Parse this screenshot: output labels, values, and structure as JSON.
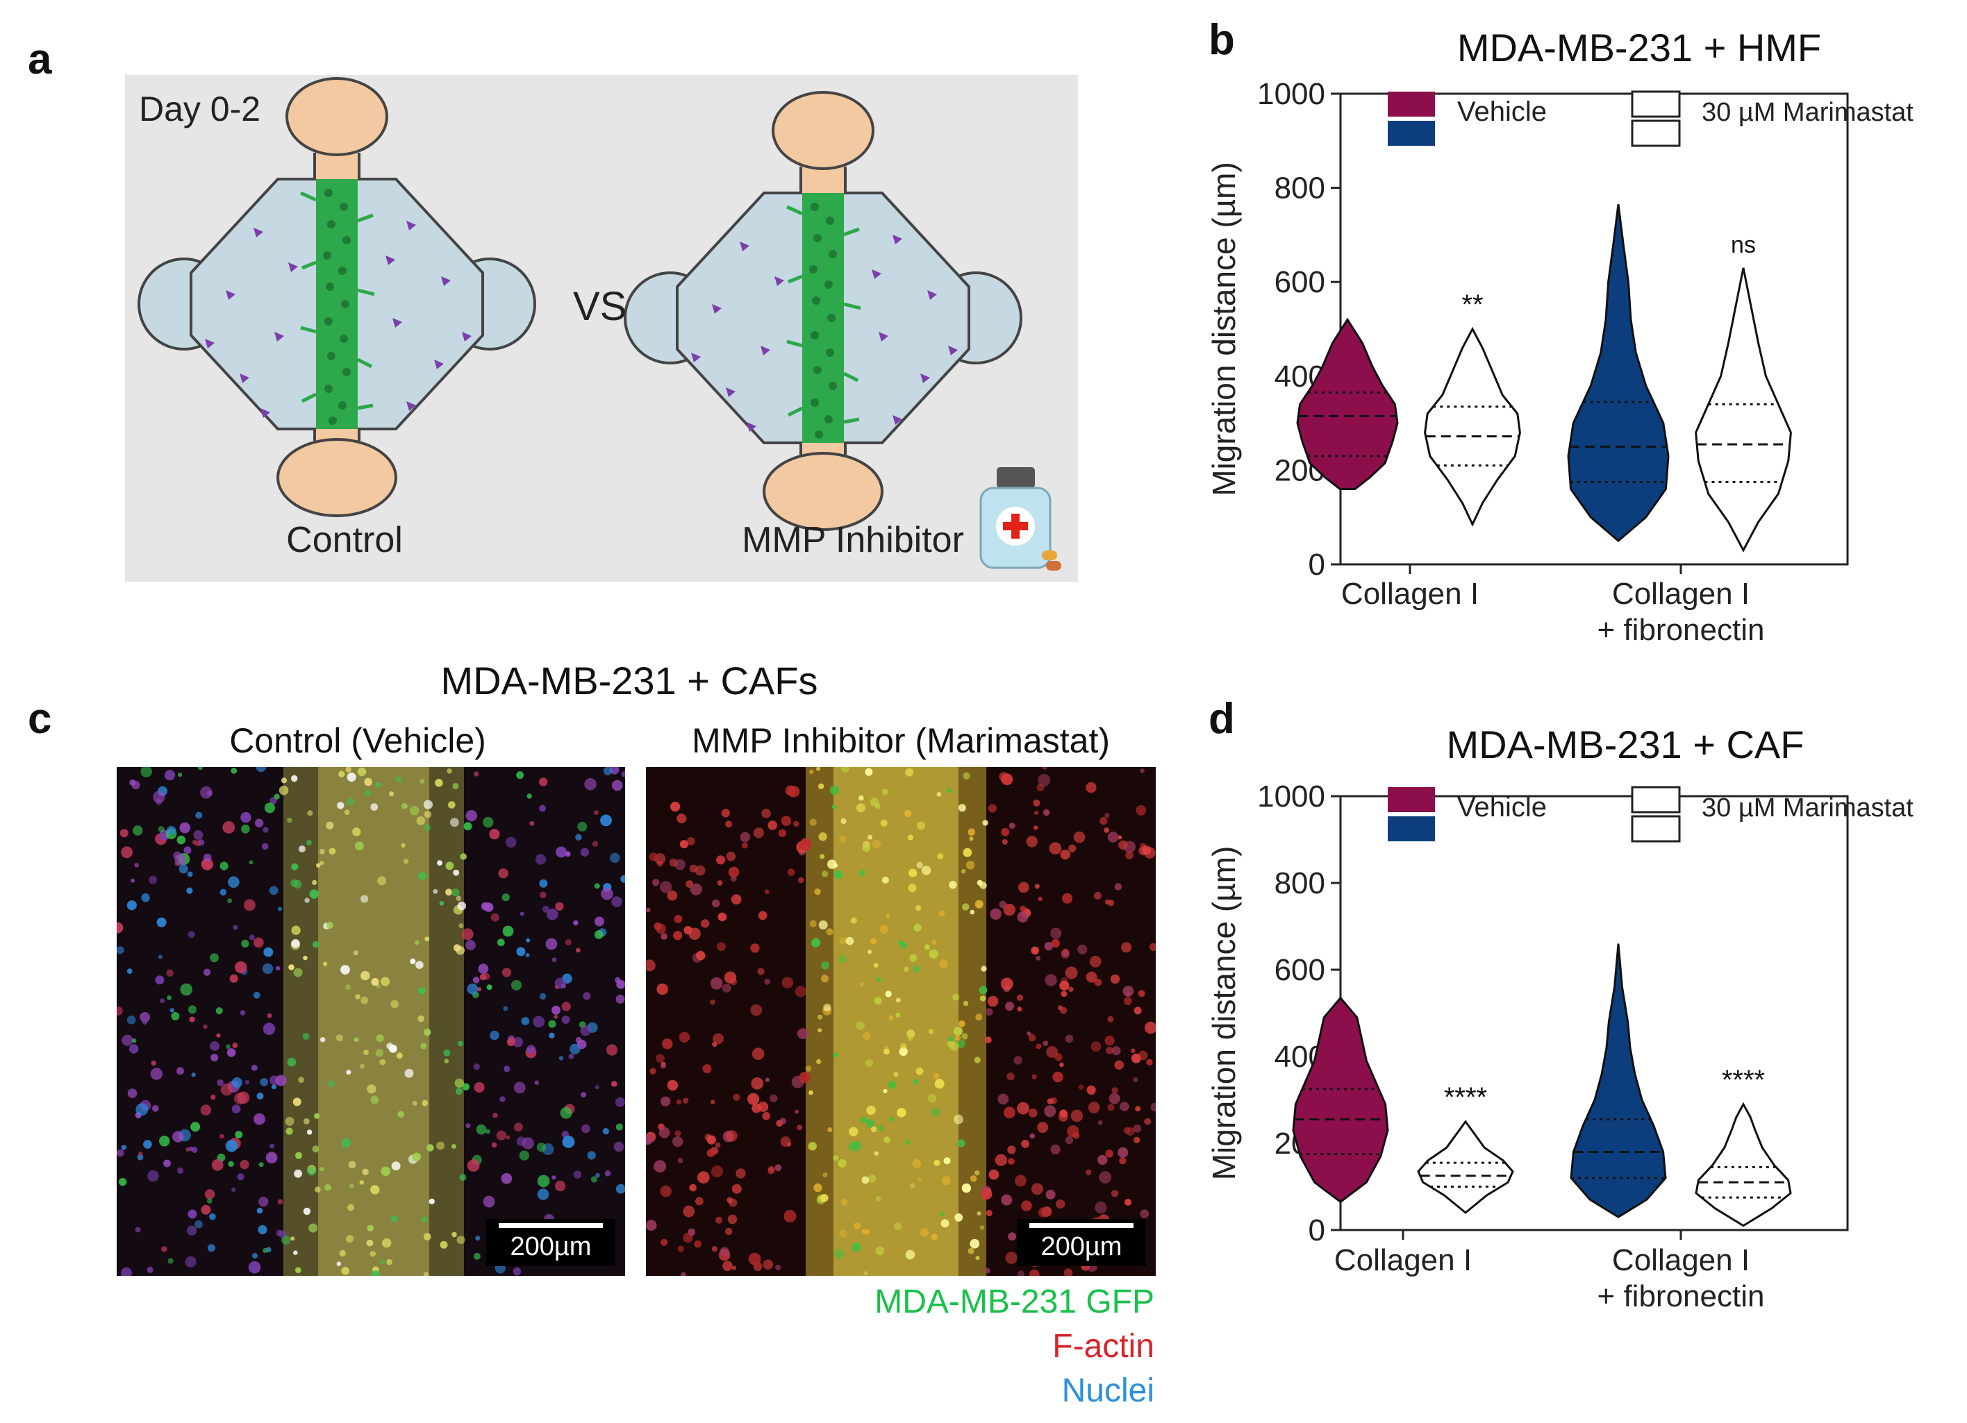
{
  "panels": {
    "a": {
      "letter": "a",
      "day_label": "Day 0-2",
      "vs_label": "VS",
      "control_label": "Control",
      "inhibitor_label": "MMP Inhibitor"
    },
    "b": {
      "letter": "b"
    },
    "c": {
      "letter": "c",
      "title": "MDA-MB-231 + CAFs",
      "left_title": "Control (Vehicle)",
      "right_title": "MMP Inhibitor (Marimastat)",
      "scale_label": "200µm",
      "legend": [
        {
          "label": "MDA-MB-231 GFP",
          "color": "#19c04a"
        },
        {
          "label": "F-actin",
          "color": "#d8232a"
        },
        {
          "label": "Nuclei",
          "color": "#2a8fdc"
        }
      ]
    },
    "d": {
      "letter": "d"
    }
  },
  "colors": {
    "vehicle_collagen": "#8c0f4b",
    "vehicle_fibronectin": "#0c3e7d",
    "diagram_bg": "#e6e6e6",
    "chip_blue": "#c6d9e3",
    "port_tan": "#f2c9a0",
    "gel_green": "#2da84a",
    "cell_purple": "#7b3fa8"
  },
  "chart_data": [
    {
      "id": "b",
      "type": "violin",
      "title": "MDA-MB-231 + HMF",
      "ylabel": "Migration distance (µm)",
      "ylim": [
        0,
        1000
      ],
      "yticks": [
        "0",
        "200",
        "400",
        "600",
        "800",
        "1000"
      ],
      "legend": {
        "vehicle": "Vehicle",
        "drug": "30 µM Marimastat"
      },
      "categories": [
        "Collagen I",
        "Collagen I\n+ fibronectin"
      ],
      "category_lines": [
        [
          "Collagen I"
        ],
        [
          "Collagen I",
          "+ fibronectin"
        ]
      ],
      "series": [
        {
          "name": "Vehicle",
          "category": 0,
          "fill": "vehicle_collagen",
          "min": 160,
          "max": 520,
          "q1": 230,
          "median": 315,
          "q3": 365,
          "shape": [
            [
              160,
              0.15
            ],
            [
              185,
              0.45
            ],
            [
              215,
              0.75
            ],
            [
              260,
              0.9
            ],
            [
              300,
              1.0
            ],
            [
              340,
              0.95
            ],
            [
              380,
              0.7
            ],
            [
              420,
              0.5
            ],
            [
              470,
              0.3
            ],
            [
              520,
              0.0
            ]
          ]
        },
        {
          "name": "30 µM Marimastat",
          "category": 0,
          "fill": "none",
          "min": 85,
          "max": 500,
          "q1": 210,
          "median": 272,
          "q3": 335,
          "sig": "**",
          "shape": [
            [
              85,
              0.0
            ],
            [
              130,
              0.2
            ],
            [
              180,
              0.5
            ],
            [
              230,
              0.85
            ],
            [
              280,
              0.95
            ],
            [
              320,
              0.9
            ],
            [
              360,
              0.6
            ],
            [
              410,
              0.4
            ],
            [
              460,
              0.2
            ],
            [
              500,
              0.0
            ]
          ]
        },
        {
          "name": "Vehicle",
          "category": 1,
          "fill": "vehicle_fibronectin",
          "min": 50,
          "max": 765,
          "q1": 175,
          "median": 250,
          "q3": 345,
          "shape": [
            [
              50,
              0.0
            ],
            [
              100,
              0.55
            ],
            [
              160,
              0.95
            ],
            [
              230,
              1.0
            ],
            [
              300,
              0.9
            ],
            [
              380,
              0.55
            ],
            [
              450,
              0.35
            ],
            [
              520,
              0.25
            ],
            [
              600,
              0.2
            ],
            [
              680,
              0.1
            ],
            [
              765,
              0.0
            ]
          ]
        },
        {
          "name": "30 µM Marimastat",
          "category": 1,
          "fill": "none",
          "min": 30,
          "max": 630,
          "q1": 175,
          "median": 255,
          "q3": 340,
          "sig": "ns",
          "shape": [
            [
              30,
              0.0
            ],
            [
              90,
              0.3
            ],
            [
              150,
              0.7
            ],
            [
              220,
              0.9
            ],
            [
              280,
              0.95
            ],
            [
              340,
              0.7
            ],
            [
              400,
              0.45
            ],
            [
              470,
              0.3
            ],
            [
              550,
              0.15
            ],
            [
              630,
              0.0
            ]
          ]
        }
      ]
    },
    {
      "id": "d",
      "type": "violin",
      "title": "MDA-MB-231 + CAF",
      "ylabel": "Migration distance (µm)",
      "ylim": [
        0,
        1000
      ],
      "yticks": [
        "0",
        "200",
        "400",
        "600",
        "800",
        "1000"
      ],
      "legend": {
        "vehicle": "Vehicle",
        "drug": "30 µM Marimastat"
      },
      "categories": [
        "Collagen I",
        "Collagen I\n+ fibronectin"
      ],
      "category_lines": [
        [
          "Collagen I"
        ],
        [
          "Collagen I",
          "+ fibronectin"
        ]
      ],
      "series": [
        {
          "name": "Vehicle",
          "category": 0,
          "fill": "vehicle_collagen",
          "min": 65,
          "max": 535,
          "q1": 175,
          "median": 255,
          "q3": 325,
          "shape": [
            [
              65,
              0.0
            ],
            [
              110,
              0.55
            ],
            [
              170,
              0.85
            ],
            [
              230,
              1.0
            ],
            [
              290,
              0.95
            ],
            [
              340,
              0.75
            ],
            [
              390,
              0.55
            ],
            [
              440,
              0.45
            ],
            [
              490,
              0.35
            ],
            [
              535,
              0.0
            ]
          ]
        },
        {
          "name": "30 µM Marimastat",
          "category": 0,
          "fill": "none",
          "min": 40,
          "max": 250,
          "q1": 100,
          "median": 125,
          "q3": 155,
          "sig": "****",
          "shape": [
            [
              40,
              0.0
            ],
            [
              80,
              0.45
            ],
            [
              110,
              0.9
            ],
            [
              135,
              1.0
            ],
            [
              160,
              0.8
            ],
            [
              190,
              0.4
            ],
            [
              220,
              0.2
            ],
            [
              250,
              0.0
            ]
          ]
        },
        {
          "name": "Vehicle",
          "category": 1,
          "fill": "vehicle_fibronectin",
          "min": 30,
          "max": 660,
          "q1": 120,
          "median": 180,
          "q3": 255,
          "shape": [
            [
              30,
              0.0
            ],
            [
              70,
              0.6
            ],
            [
              120,
              1.0
            ],
            [
              180,
              0.95
            ],
            [
              240,
              0.75
            ],
            [
              300,
              0.5
            ],
            [
              360,
              0.35
            ],
            [
              420,
              0.25
            ],
            [
              480,
              0.2
            ],
            [
              560,
              0.08
            ],
            [
              660,
              0.0
            ]
          ]
        },
        {
          "name": "30 µM Marimastat",
          "category": 1,
          "fill": "none",
          "min": 10,
          "max": 290,
          "q1": 75,
          "median": 110,
          "q3": 145,
          "sig": "****",
          "shape": [
            [
              10,
              0.0
            ],
            [
              50,
              0.6
            ],
            [
              85,
              1.0
            ],
            [
              115,
              0.95
            ],
            [
              150,
              0.65
            ],
            [
              190,
              0.4
            ],
            [
              230,
              0.25
            ],
            [
              260,
              0.15
            ],
            [
              290,
              0.0
            ]
          ]
        }
      ]
    }
  ]
}
